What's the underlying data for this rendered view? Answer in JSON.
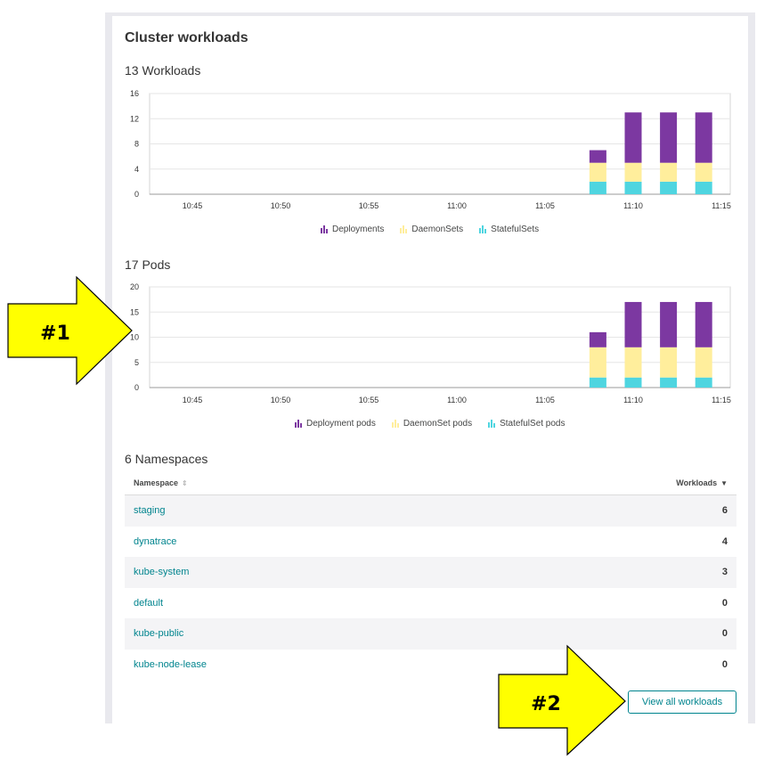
{
  "card": {
    "title": "Cluster workloads"
  },
  "workloads_section": {
    "title": "13 Workloads"
  },
  "pods_section": {
    "title": "17 Pods"
  },
  "namespaces_section": {
    "title": "6 Namespaces"
  },
  "chart_data": [
    {
      "type": "bar",
      "stacked": true,
      "title": "13 Workloads",
      "x_ticks": [
        "10:45",
        "10:50",
        "10:55",
        "11:00",
        "11:05",
        "11:10",
        "11:15"
      ],
      "y_ticks": [
        "0",
        "4",
        "8",
        "12",
        "16"
      ],
      "ylim": [
        0,
        16
      ],
      "categories": [
        "11:08",
        "11:10",
        "11:12",
        "11:14"
      ],
      "series": [
        {
          "name": "Deployments",
          "color": "#7c38a1",
          "values": [
            2,
            8,
            8,
            8
          ]
        },
        {
          "name": "DaemonSets",
          "color": "#ffee9c",
          "values": [
            3,
            3,
            3,
            3
          ]
        },
        {
          "name": "StatefulSets",
          "color": "#4fd5e0",
          "values": [
            2,
            2,
            2,
            2
          ]
        }
      ],
      "legend_position": "bottom",
      "grid": true
    },
    {
      "type": "bar",
      "stacked": true,
      "title": "17 Pods",
      "x_ticks": [
        "10:45",
        "10:50",
        "10:55",
        "11:00",
        "11:05",
        "11:10",
        "11:15"
      ],
      "y_ticks": [
        "0",
        "5",
        "10",
        "15",
        "20"
      ],
      "ylim": [
        0,
        20
      ],
      "categories": [
        "11:08",
        "11:10",
        "11:12",
        "11:14"
      ],
      "series": [
        {
          "name": "Deployment pods",
          "color": "#7c38a1",
          "values": [
            3,
            9,
            9,
            9
          ]
        },
        {
          "name": "DaemonSet pods",
          "color": "#ffee9c",
          "values": [
            6,
            6,
            6,
            6
          ]
        },
        {
          "name": "StatefulSet pods",
          "color": "#4fd5e0",
          "values": [
            2,
            2,
            2,
            2
          ]
        }
      ],
      "legend_position": "bottom",
      "grid": true
    }
  ],
  "table": {
    "col_namespace": "Namespace",
    "col_workloads": "Workloads",
    "rows": [
      {
        "name": "staging",
        "workloads": "6"
      },
      {
        "name": "dynatrace",
        "workloads": "4"
      },
      {
        "name": "kube-system",
        "workloads": "3"
      },
      {
        "name": "default",
        "workloads": "0"
      },
      {
        "name": "kube-public",
        "workloads": "0"
      },
      {
        "name": "kube-node-lease",
        "workloads": "0"
      }
    ]
  },
  "view_all_button": "View all workloads",
  "annotations": {
    "arrow1_label": "#1",
    "arrow2_label": "#2",
    "arrow_color": "#ffff00"
  }
}
